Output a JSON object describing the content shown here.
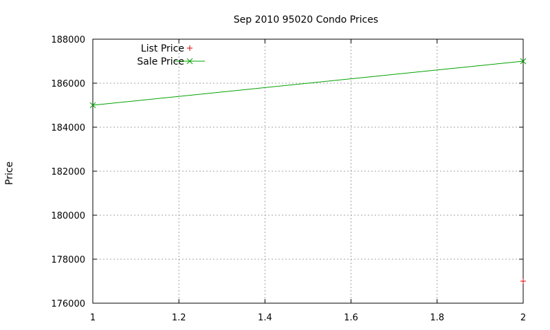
{
  "chart_data": {
    "type": "line",
    "title": "Sep 2010 95020 Condo Prices",
    "xlabel": "",
    "ylabel": "Price",
    "xlim": [
      1,
      2
    ],
    "ylim": [
      176000,
      188000
    ],
    "x_ticks": [
      1,
      1.2,
      1.4,
      1.6,
      1.8,
      2
    ],
    "x_tick_labels": [
      "1",
      "1.2",
      "1.4",
      "1.6",
      "1.8",
      "2"
    ],
    "y_ticks": [
      176000,
      178000,
      180000,
      182000,
      184000,
      186000,
      188000
    ],
    "y_tick_labels": [
      "176000",
      "178000",
      "180000",
      "182000",
      "184000",
      "186000",
      "188000"
    ],
    "grid": true,
    "legend_position": "top-left",
    "series": [
      {
        "name": "List Price",
        "style": "points",
        "marker": "plus",
        "color": "#e00000",
        "x": [
          2
        ],
        "y": [
          177000
        ]
      },
      {
        "name": "Sale Price",
        "style": "linespoints",
        "marker": "cross",
        "color": "#00a000",
        "x": [
          1,
          2
        ],
        "y": [
          185000,
          187000
        ]
      }
    ]
  }
}
